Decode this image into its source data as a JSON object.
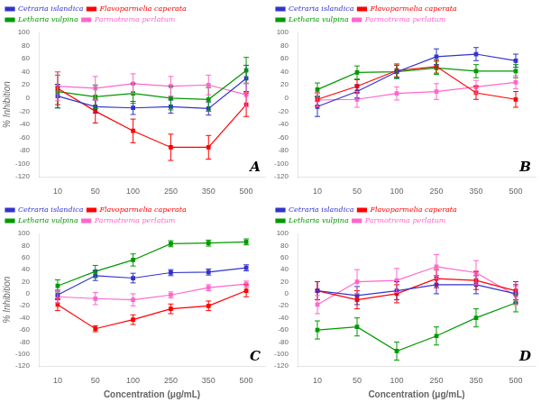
{
  "chart_data": [
    {
      "type": "line",
      "ylabel": "% Inhibition",
      "annotations": [
        "A"
      ],
      "categories": [
        "10",
        "50",
        "100",
        "250",
        "350",
        "500"
      ],
      "series": [
        {
          "name": "Cetraria islandica",
          "color": "#3333CC",
          "values": [
            3,
            -13,
            -15,
            -13,
            -16,
            30
          ],
          "yerr": [
            18,
            10,
            10,
            10,
            10,
            20
          ]
        },
        {
          "name": "Flavoparmelia caperata",
          "color": "#FF0000",
          "values": [
            15,
            -20,
            -50,
            -75,
            -75,
            -10
          ],
          "yerr": [
            25,
            18,
            18,
            20,
            18,
            18
          ]
        },
        {
          "name": "Letharia vulpina",
          "color": "#009900",
          "values": [
            10,
            2,
            7,
            0,
            -2,
            42
          ],
          "yerr": [
            25,
            18,
            15,
            18,
            18,
            20
          ]
        },
        {
          "name": "Parmotrema perlatum",
          "color": "#FF66CC",
          "values": [
            18,
            15,
            22,
            18,
            20,
            5
          ],
          "yerr": [
            22,
            18,
            15,
            15,
            15,
            18
          ]
        }
      ],
      "ylim": [
        -120,
        100
      ],
      "yticks": [
        -120,
        -100,
        -80,
        -60,
        -40,
        -20,
        0,
        20,
        40,
        60,
        80,
        100
      ],
      "grid": false,
      "legend": "upper left",
      "marker": "square"
    },
    {
      "type": "line",
      "annotations": [
        "B"
      ],
      "categories": [
        "10",
        "50",
        "100",
        "250",
        "350",
        "500"
      ],
      "series": [
        {
          "name": "Cetraria islandica",
          "color": "#3333CC",
          "values": [
            -13,
            10,
            40,
            63,
            67,
            57
          ],
          "yerr": [
            15,
            10,
            10,
            12,
            10,
            10
          ]
        },
        {
          "name": "Flavoparmelia caperata",
          "color": "#FF0000",
          "values": [
            -2,
            18,
            42,
            48,
            8,
            -2
          ],
          "yerr": [
            10,
            10,
            10,
            10,
            10,
            12
          ]
        },
        {
          "name": "Letharia vulpina",
          "color": "#009900",
          "values": [
            13,
            39,
            40,
            46,
            41,
            41
          ],
          "yerr": [
            10,
            10,
            10,
            10,
            10,
            10
          ]
        },
        {
          "name": "Parmotrema perlatum",
          "color": "#FF66CC",
          "values": [
            -3,
            -2,
            7,
            10,
            17,
            24
          ],
          "yerr": [
            10,
            12,
            10,
            12,
            10,
            10
          ]
        }
      ],
      "ylim": [
        -120,
        100
      ],
      "yticks": [
        -120,
        -100,
        -80,
        -60,
        -40,
        -20,
        0,
        20,
        40,
        60,
        80,
        100
      ],
      "grid": false,
      "legend": "upper left",
      "marker": "square"
    },
    {
      "type": "line",
      "ylabel": "% Inhibition",
      "xlabel": "Concentration (μg/mL)",
      "annotations": [
        "C"
      ],
      "categories": [
        "10",
        "50",
        "100",
        "250",
        "350",
        "500"
      ],
      "series": [
        {
          "name": "Cetraria islandica",
          "color": "#3333CC",
          "values": [
            -2,
            30,
            26,
            35,
            36,
            43
          ],
          "yerr": [
            8,
            8,
            8,
            5,
            5,
            5
          ]
        },
        {
          "name": "Flavoparmelia caperata",
          "color": "#FF0000",
          "values": [
            -18,
            -58,
            -43,
            -25,
            -20,
            5
          ],
          "yerr": [
            10,
            5,
            8,
            8,
            8,
            10
          ]
        },
        {
          "name": "Letharia vulpina",
          "color": "#009900",
          "values": [
            13,
            37,
            56,
            83,
            84,
            86
          ],
          "yerr": [
            10,
            10,
            10,
            5,
            5,
            5
          ]
        },
        {
          "name": "Parmotrema perlatum",
          "color": "#FF66CC",
          "values": [
            -5,
            -8,
            -10,
            -2,
            10,
            16
          ],
          "yerr": [
            10,
            10,
            10,
            5,
            5,
            5
          ]
        }
      ],
      "ylim": [
        -120,
        100
      ],
      "yticks": [
        -120,
        -100,
        -80,
        -60,
        -40,
        -20,
        0,
        20,
        40,
        60,
        80,
        100
      ],
      "grid": false,
      "legend": "upper left",
      "marker": "square"
    },
    {
      "type": "line",
      "xlabel": "Concentration (μg/mL)",
      "annotations": [
        "D"
      ],
      "categories": [
        "10",
        "50",
        "100",
        "250",
        "350",
        "500"
      ],
      "series": [
        {
          "name": "Cetraria islandica",
          "color": "#3333CC",
          "values": [
            5,
            -3,
            5,
            15,
            15,
            0
          ],
          "yerr": [
            15,
            15,
            15,
            15,
            15,
            15
          ]
        },
        {
          "name": "Flavoparmelia caperata",
          "color": "#FF0000",
          "values": [
            5,
            -10,
            0,
            25,
            22,
            5
          ],
          "yerr": [
            15,
            15,
            15,
            15,
            15,
            15
          ]
        },
        {
          "name": "Letharia vulpina",
          "color": "#009900",
          "values": [
            -60,
            -55,
            -95,
            -70,
            -40,
            -15
          ],
          "yerr": [
            15,
            15,
            15,
            15,
            15,
            15
          ]
        },
        {
          "name": "Parmotrema perlatum",
          "color": "#FF66CC",
          "values": [
            -18,
            20,
            22,
            45,
            35,
            -3
          ],
          "yerr": [
            15,
            20,
            20,
            20,
            20,
            15
          ]
        }
      ],
      "ylim": [
        -120,
        100
      ],
      "yticks": [
        -120,
        -100,
        -80,
        -60,
        -40,
        -20,
        0,
        20,
        40,
        60,
        80,
        100
      ],
      "grid": false,
      "legend": "upper left",
      "marker": "square"
    }
  ]
}
